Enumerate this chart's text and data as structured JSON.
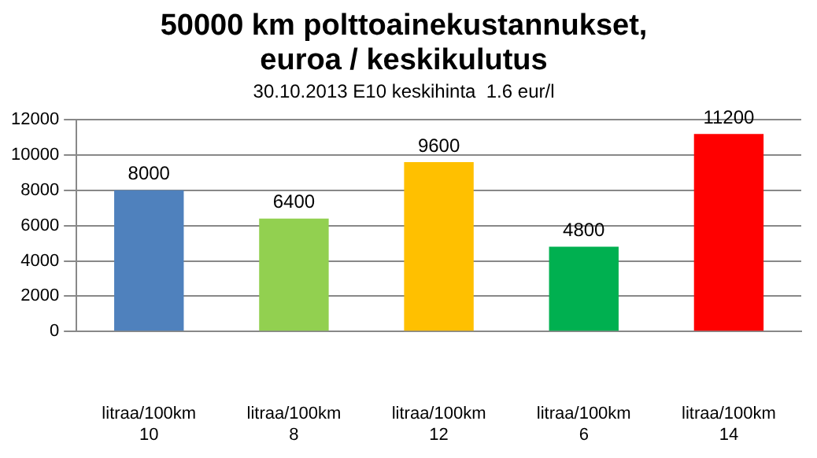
{
  "chart_data": {
    "type": "bar",
    "title": "50000 km polttoainekustannukset,\neuroa / keskikulutus",
    "subtitle": "30.10.2013 E10 keskihinta  1.6 eur/l",
    "categories": [
      "litraa/100km\n10",
      "litraa/100km\n8",
      "litraa/100km\n12",
      "litraa/100km\n6",
      "litraa/100km\n14"
    ],
    "values": [
      8000,
      6400,
      9600,
      4800,
      11200
    ],
    "colors": [
      "#4f81bd",
      "#92d050",
      "#ffc000",
      "#00b050",
      "#ff0000"
    ],
    "ylim": [
      0,
      12000
    ],
    "yticks": [
      0,
      2000,
      4000,
      6000,
      8000,
      10000,
      12000
    ],
    "grid": "y",
    "data_labels": true,
    "legend": false
  }
}
